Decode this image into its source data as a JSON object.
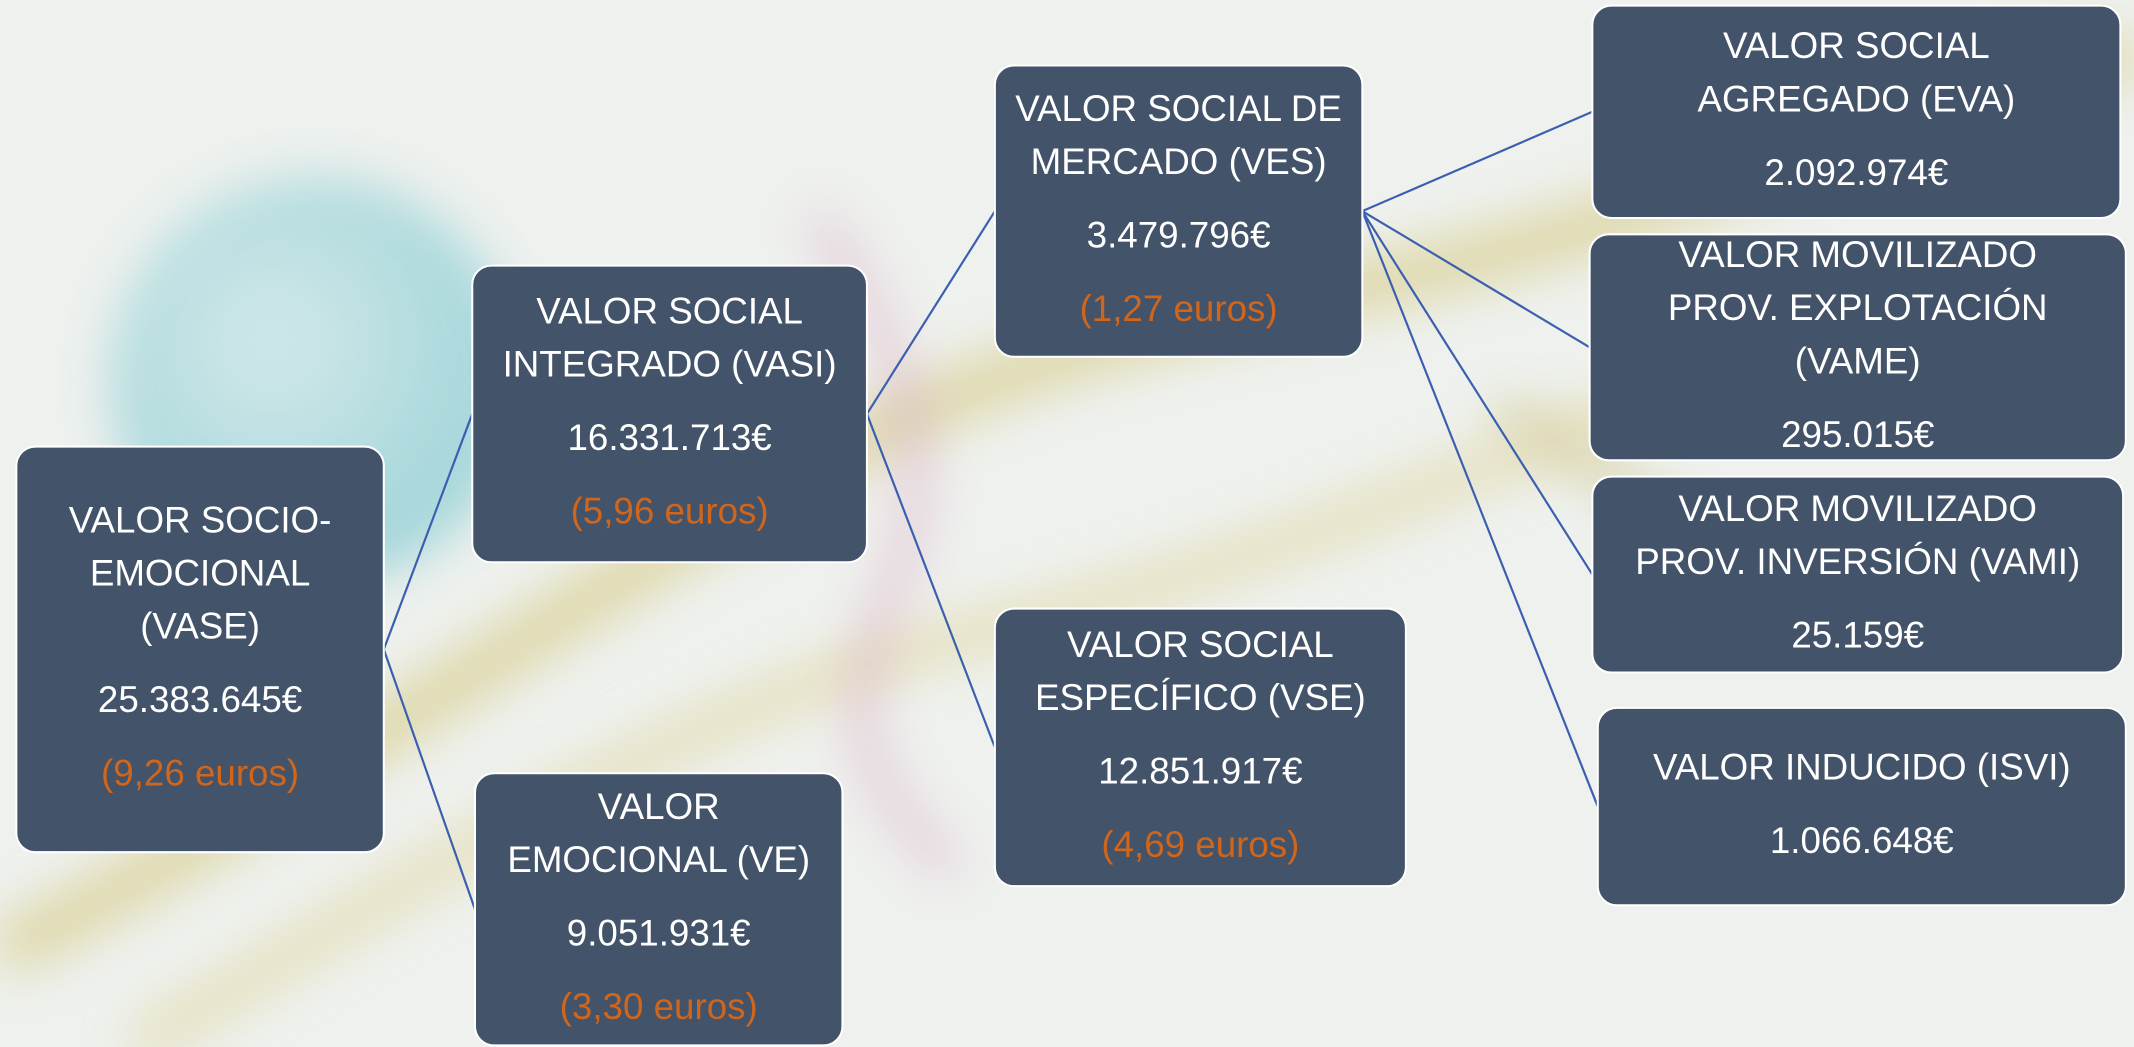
{
  "nodes": [
    {
      "lines": [
        "VALOR SOCIO-",
        "EMOCIONAL",
        "(VASE)"
      ],
      "value": "25.383.645€",
      "per_euro": "(9,26 euros)"
    },
    {
      "lines": [
        "VALOR SOCIAL",
        "INTEGRADO (VASI)"
      ],
      "value": "16.331.713€",
      "per_euro": "(5,96 euros)"
    },
    {
      "lines": [
        "VALOR",
        "EMOCIONAL (VE)"
      ],
      "value": "9.051.931€",
      "per_euro": "(3,30 euros)"
    },
    {
      "lines": [
        "VALOR SOCIAL DE",
        "MERCADO (VES)"
      ],
      "value": "3.479.796€",
      "per_euro": "(1,27 euros)"
    },
    {
      "lines": [
        "VALOR SOCIAL",
        "ESPECÍFICO (VSE)"
      ],
      "value": "12.851.917€",
      "per_euro": "(4,69 euros)"
    },
    {
      "lines": [
        "VALOR SOCIAL",
        "AGREGADO (EVA)"
      ],
      "value": "2.092.974€"
    },
    {
      "lines": [
        "VALOR MOVILIZADO",
        "PROV. EXPLOTACIÓN",
        "(VAME)"
      ],
      "value": "295.015€"
    },
    {
      "lines": [
        "VALOR MOVILIZADO",
        "PROV. INVERSIÓN (VAMI)"
      ],
      "value": "25.159€"
    },
    {
      "lines": [
        "VALOR INDUCIDO (ISVI)"
      ],
      "value": "1.066.648€"
    }
  ]
}
